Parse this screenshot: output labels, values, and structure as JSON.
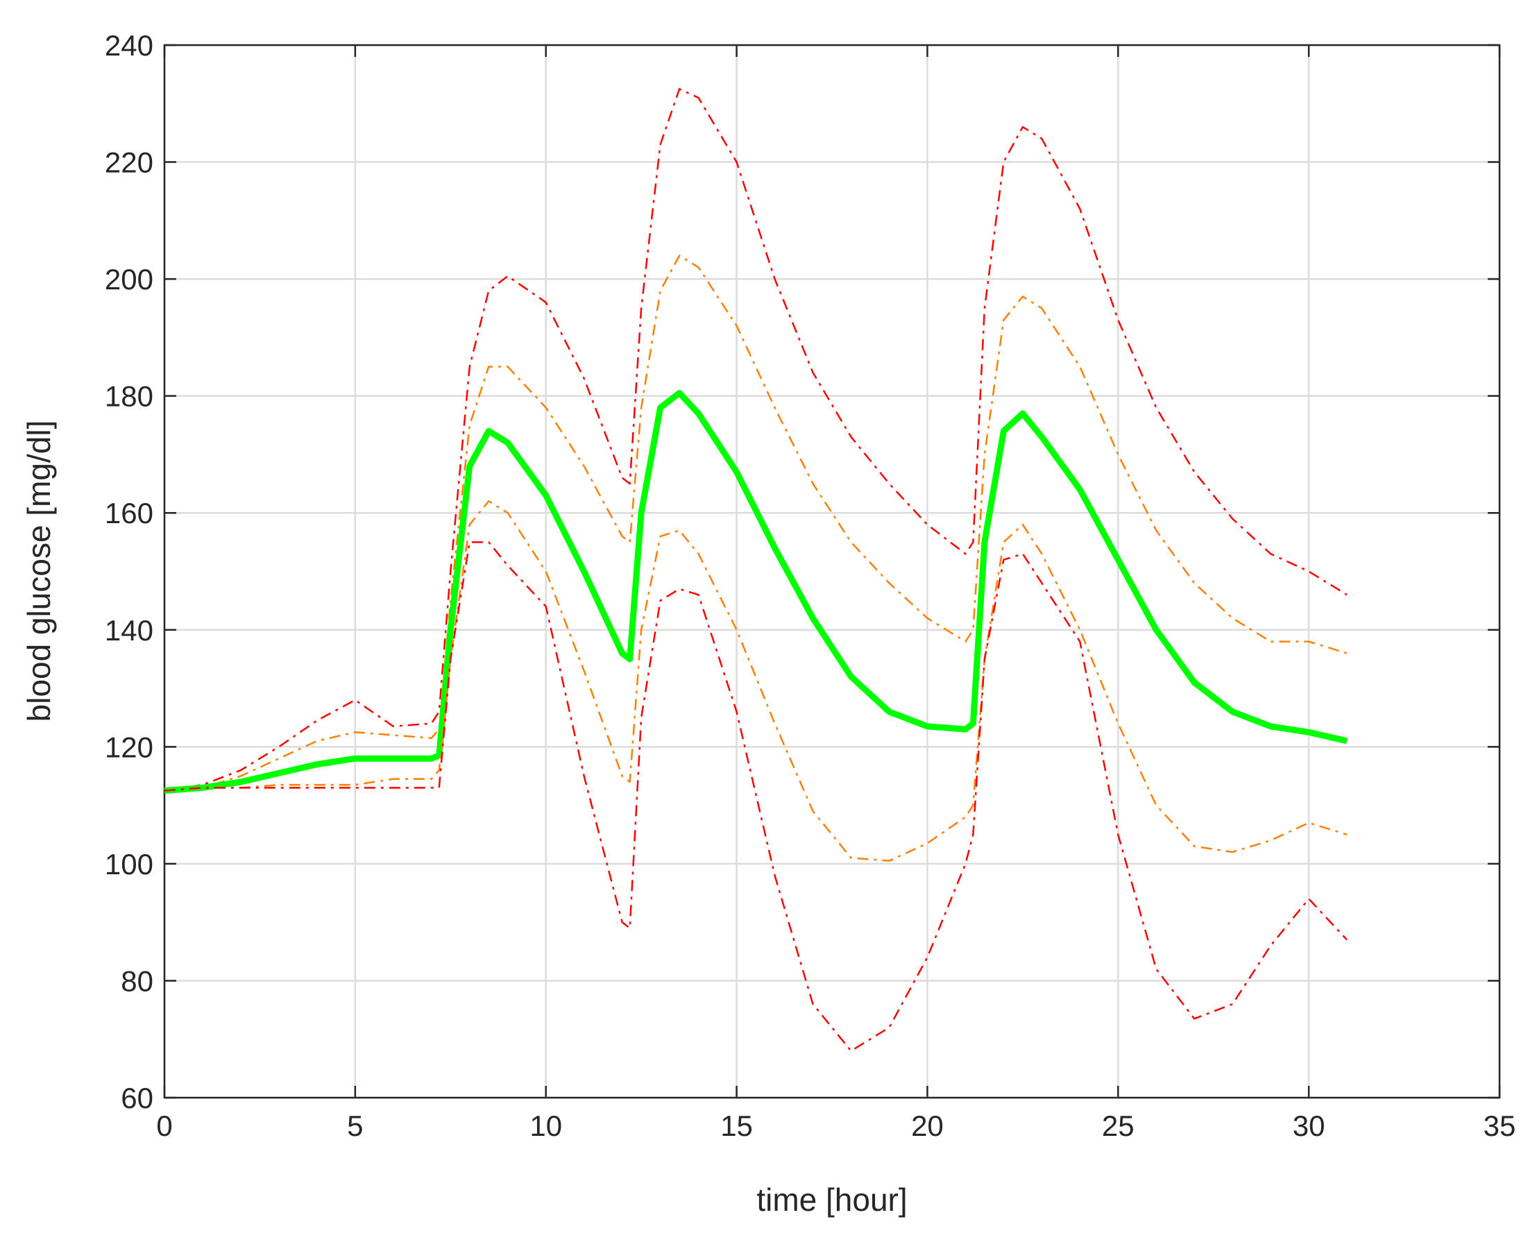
{
  "chart_data": {
    "type": "line",
    "xlabel": "time [hour]",
    "ylabel": "blood glucose [mg/dl]",
    "x": [
      0,
      1,
      2,
      3,
      4,
      5,
      6,
      7,
      7.2,
      7.5,
      8,
      8.5,
      9,
      10,
      11,
      12,
      12.2,
      12.5,
      13,
      13.5,
      14,
      15,
      16,
      17,
      18,
      19,
      20,
      21,
      21.2,
      21.5,
      22,
      22.5,
      23,
      24,
      25,
      26,
      27,
      28,
      29,
      30,
      31
    ],
    "xlim": [
      0,
      35
    ],
    "xticks": [
      0,
      5,
      10,
      15,
      20,
      25,
      30,
      35
    ],
    "ylim": [
      60,
      240
    ],
    "yticks": [
      60,
      80,
      100,
      120,
      140,
      160,
      180,
      200,
      220,
      240
    ],
    "grid": true,
    "series": [
      {
        "color": "#ff0000",
        "line_style": "dash-dot",
        "line_width": 2.5,
        "values": [
          112.5,
          113.5,
          116,
          120,
          124.5,
          128,
          123.5,
          124,
          126,
          150,
          185,
          198,
          200.5,
          196,
          183,
          166,
          165,
          195,
          223,
          232.5,
          231,
          220,
          200,
          184,
          173,
          165,
          158,
          153,
          155,
          195,
          220,
          226,
          224,
          212,
          193,
          178,
          167,
          159,
          153,
          150,
          146
        ]
      },
      {
        "color": "#ff8000",
        "line_style": "dash-dot",
        "line_width": 2.5,
        "values": [
          112.5,
          113,
          115,
          118,
          121,
          122.5,
          122,
          121.5,
          123,
          145,
          175,
          185,
          185,
          178,
          168,
          156,
          155,
          178,
          198,
          204,
          202,
          192,
          178,
          165,
          155,
          148,
          142,
          138,
          140,
          170,
          193,
          197,
          195,
          185,
          170,
          157,
          148,
          142,
          138,
          138,
          136
        ]
      },
      {
        "color": "#00ff00",
        "line_style": "solid",
        "line_width": 9,
        "values": [
          112.5,
          113,
          114,
          115.5,
          117,
          118,
          118,
          118,
          118.5,
          140,
          168,
          174,
          172,
          163,
          150,
          136,
          135,
          160,
          178,
          180.5,
          177,
          167,
          154,
          142,
          132,
          126,
          123.5,
          123,
          124,
          155,
          174,
          177,
          173,
          164,
          152,
          140,
          131,
          126,
          123.5,
          122.5,
          121
        ]
      },
      {
        "color": "#ff8000",
        "line_style": "dash-dot",
        "line_width": 2.5,
        "values": [
          112.5,
          113,
          113,
          113.5,
          113.5,
          113.5,
          114.5,
          114.5,
          116,
          135,
          158,
          162,
          160,
          150,
          133,
          115,
          114,
          140,
          156,
          157,
          153,
          140,
          124,
          109,
          101,
          100.5,
          103.5,
          108,
          110,
          135,
          155,
          158,
          153,
          140,
          124,
          110,
          103,
          102,
          104,
          107,
          105
        ]
      },
      {
        "color": "#ff0000",
        "line_style": "dash-dot",
        "line_width": 2.5,
        "values": [
          112.5,
          113,
          113,
          113,
          113,
          113,
          113,
          113,
          113,
          135,
          155,
          155,
          151,
          144,
          115,
          90,
          89,
          125,
          145,
          147,
          146,
          126,
          98,
          76,
          68,
          72,
          84,
          100,
          105,
          135,
          152,
          153,
          148,
          138,
          105,
          82,
          73.5,
          76,
          86,
          94,
          87
        ]
      }
    ]
  }
}
